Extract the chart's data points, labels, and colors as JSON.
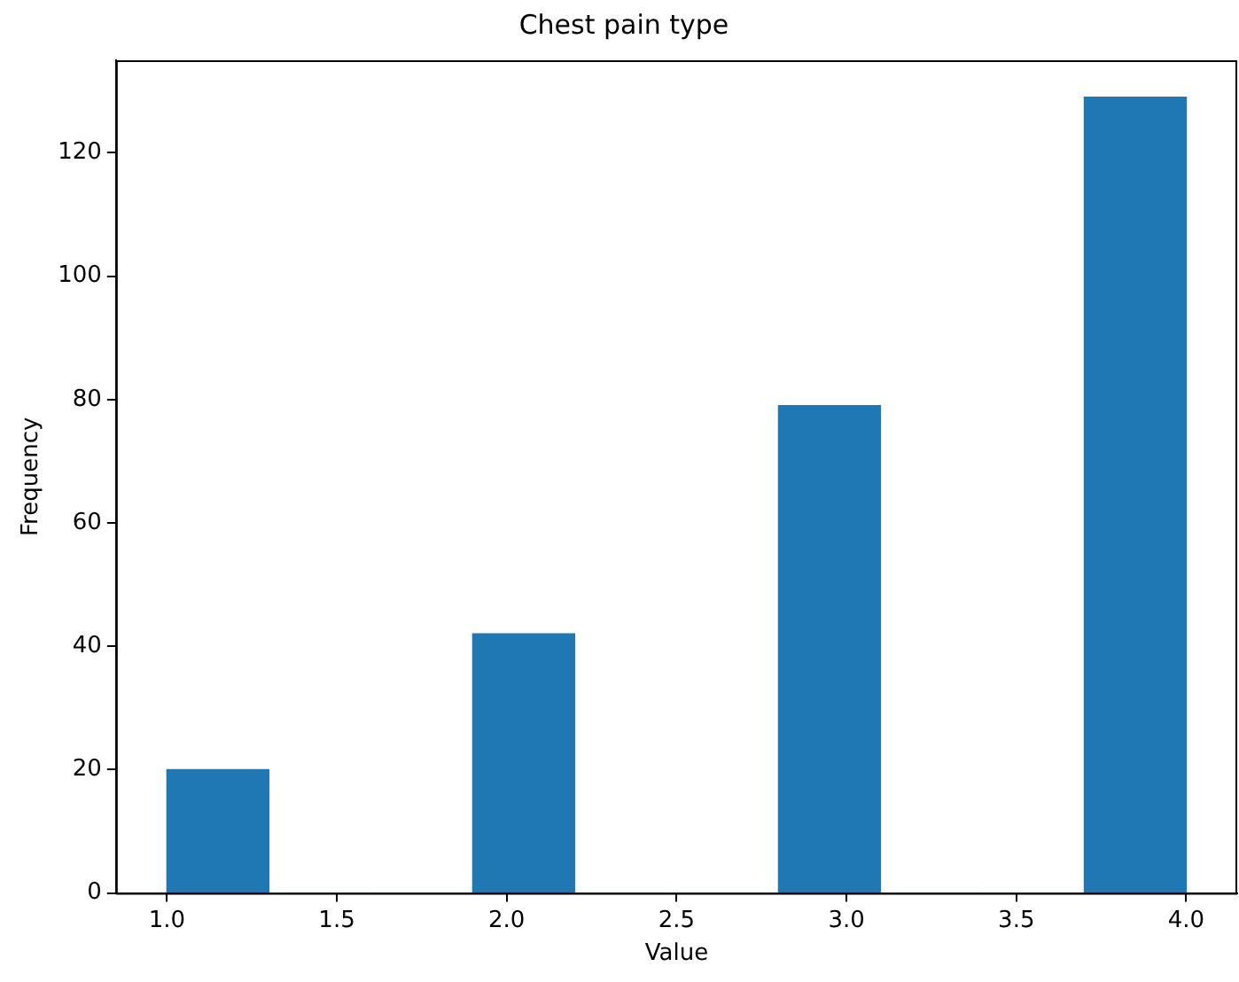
{
  "chart_data": {
    "type": "histogram",
    "title": "Chest pain type",
    "xlabel": "Value",
    "ylabel": "Frequency",
    "bins": [
      1.0,
      1.3,
      1.6,
      1.9,
      2.2,
      2.5,
      2.8,
      3.1,
      3.4,
      3.7,
      4.0
    ],
    "values": [
      20,
      0,
      0,
      42,
      0,
      0,
      79,
      0,
      0,
      129
    ],
    "color": "#1f77b4",
    "xlim": [
      0.85,
      4.15
    ],
    "xticks": [
      {
        "value": 1,
        "label": "1.0"
      },
      {
        "value": 1.5,
        "label": "1.5"
      },
      {
        "value": 2,
        "label": "2.0"
      },
      {
        "value": 2.5,
        "label": "2.5"
      },
      {
        "value": 3,
        "label": "3.0"
      },
      {
        "value": 3.5,
        "label": "3.5"
      },
      {
        "value": 4,
        "label": "4.0"
      }
    ],
    "ylim": [
      0,
      135
    ],
    "yticks": [
      0,
      20,
      40,
      60,
      80,
      100,
      120
    ],
    "grid": false,
    "legend": false
  }
}
